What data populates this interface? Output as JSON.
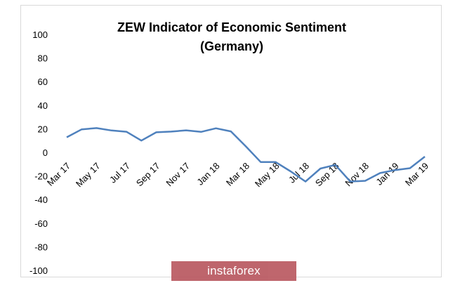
{
  "chart_data": {
    "type": "line",
    "title_line1": "ZEW Indicator of Economic Sentiment",
    "title_line2": "(Germany)",
    "xlabel": "",
    "ylabel": "",
    "ylim": [
      -100,
      100
    ],
    "yticks": [
      100,
      80,
      60,
      40,
      20,
      0,
      -20,
      -40,
      -60,
      -80,
      -100
    ],
    "grid": false,
    "legend": "none",
    "line_color": "#4f81bd",
    "x_tick_labels": [
      "Mar 17",
      "May 17",
      "Jul 17",
      "Sep 17",
      "Nov 17",
      "Jan 18",
      "Mar 18",
      "May 18",
      "Jul 18",
      "Sep 18",
      "Nov 18",
      "Jan 19",
      "Mar 19"
    ],
    "x": [
      "Mar 17",
      "Apr 17",
      "May 17",
      "Jun 17",
      "Jul 17",
      "Aug 17",
      "Sep 17",
      "Oct 17",
      "Nov 17",
      "Dec 17",
      "Jan 18",
      "Feb 18",
      "Mar 18",
      "Apr 18",
      "May 18",
      "Jun 18",
      "Jul 18",
      "Aug 18",
      "Sep 18",
      "Oct 18",
      "Nov 18",
      "Dec 18",
      "Jan 19",
      "Feb 19",
      "Mar 19"
    ],
    "series": [
      {
        "values": [
          12.8,
          19.5,
          20.6,
          18.6,
          17.5,
          10.0,
          17.0,
          17.6,
          18.7,
          17.4,
          20.4,
          17.8,
          5.1,
          -8.2,
          -8.2,
          -16.1,
          -24.7,
          -13.7,
          -10.6,
          -24.7,
          -24.1,
          -17.5,
          -15.0,
          -13.4,
          -3.6
        ]
      }
    ]
  },
  "watermark": {
    "text": "instaforex",
    "color": "#b8555d"
  }
}
